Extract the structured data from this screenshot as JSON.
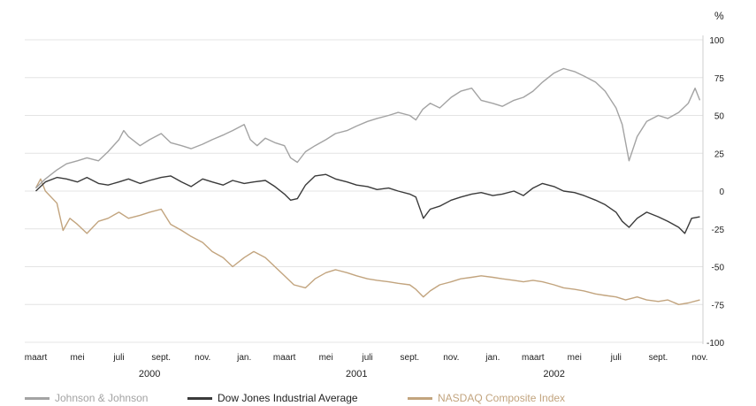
{
  "chart_data": {
    "type": "line",
    "unit_label": "%",
    "ylim": [
      -100,
      100
    ],
    "y_ticks": [
      "100",
      "75",
      "50",
      "25",
      "0",
      "-25",
      "-50",
      "-75",
      "-100"
    ],
    "y_tick_values": [
      100,
      75,
      50,
      25,
      0,
      -25,
      -50,
      -75,
      -100
    ],
    "month_labels": [
      "maart",
      "mei",
      "juli",
      "sept.",
      "nov.",
      "jan.",
      "maart",
      "mei",
      "juli",
      "sept.",
      "nov.",
      "jan.",
      "maart",
      "mei",
      "juli",
      "sept.",
      "nov."
    ],
    "month_dates": [
      "2000-03-01",
      "2000-05-01",
      "2000-07-01",
      "2000-09-01",
      "2000-11-01",
      "2001-01-01",
      "2001-03-01",
      "2001-05-01",
      "2001-07-01",
      "2001-09-01",
      "2001-11-01",
      "2002-01-01",
      "2002-03-01",
      "2002-05-01",
      "2002-07-01",
      "2002-09-01",
      "2002-11-01"
    ],
    "year_labels": [
      {
        "label": "2000",
        "date": "2000-08-15"
      },
      {
        "label": "2001",
        "date": "2001-06-15"
      },
      {
        "label": "2002",
        "date": "2002-04-01"
      }
    ],
    "x_range": [
      "2000-02-28",
      "2002-11-03"
    ],
    "grid": true,
    "legend_position": "bottom",
    "series": [
      {
        "name": "Johnson & Johnson",
        "color": "#a3a3a3",
        "x": [
          "2000-03-01",
          "2000-03-15",
          "2000-04-01",
          "2000-04-15",
          "2000-05-01",
          "2000-05-15",
          "2000-06-01",
          "2000-06-15",
          "2000-07-01",
          "2000-07-08",
          "2000-07-15",
          "2000-08-01",
          "2000-08-15",
          "2000-09-01",
          "2000-09-15",
          "2000-10-01",
          "2000-10-15",
          "2000-11-01",
          "2000-11-15",
          "2000-12-01",
          "2000-12-15",
          "2001-01-01",
          "2001-01-10",
          "2001-01-20",
          "2001-02-01",
          "2001-02-15",
          "2001-03-01",
          "2001-03-10",
          "2001-03-20",
          "2001-04-01",
          "2001-04-15",
          "2001-05-01",
          "2001-05-15",
          "2001-06-01",
          "2001-06-15",
          "2001-07-01",
          "2001-07-15",
          "2001-08-01",
          "2001-08-15",
          "2001-09-01",
          "2001-09-10",
          "2001-09-20",
          "2001-10-01",
          "2001-10-15",
          "2001-11-01",
          "2001-11-15",
          "2001-12-01",
          "2001-12-15",
          "2002-01-01",
          "2002-01-15",
          "2002-02-01",
          "2002-02-15",
          "2002-03-01",
          "2002-03-15",
          "2002-04-01",
          "2002-04-15",
          "2002-05-01",
          "2002-05-15",
          "2002-06-01",
          "2002-06-15",
          "2002-07-01",
          "2002-07-10",
          "2002-07-20",
          "2002-08-01",
          "2002-08-15",
          "2002-09-01",
          "2002-09-15",
          "2002-10-01",
          "2002-10-15",
          "2002-10-25",
          "2002-11-01"
        ],
        "values": [
          2,
          8,
          14,
          18,
          20,
          22,
          20,
          26,
          34,
          40,
          36,
          30,
          34,
          38,
          32,
          30,
          28,
          31,
          34,
          37,
          40,
          44,
          34,
          30,
          35,
          32,
          30,
          22,
          19,
          26,
          30,
          34,
          38,
          40,
          43,
          46,
          48,
          50,
          52,
          50,
          47,
          54,
          58,
          55,
          62,
          66,
          68,
          60,
          58,
          56,
          60,
          62,
          66,
          72,
          78,
          81,
          79,
          76,
          72,
          66,
          55,
          44,
          20,
          36,
          46,
          50,
          48,
          52,
          58,
          68,
          60
        ]
      },
      {
        "name": "Dow Jones Industrial Average",
        "color": "#3a3a3a",
        "x": [
          "2000-03-01",
          "2000-03-15",
          "2000-04-01",
          "2000-04-15",
          "2000-05-01",
          "2000-05-15",
          "2000-06-01",
          "2000-06-15",
          "2000-07-01",
          "2000-07-15",
          "2000-08-01",
          "2000-08-15",
          "2000-09-01",
          "2000-09-15",
          "2000-10-01",
          "2000-10-15",
          "2000-11-01",
          "2000-11-15",
          "2000-12-01",
          "2000-12-15",
          "2001-01-01",
          "2001-01-15",
          "2001-02-01",
          "2001-02-15",
          "2001-03-01",
          "2001-03-10",
          "2001-03-20",
          "2001-04-01",
          "2001-04-15",
          "2001-05-01",
          "2001-05-15",
          "2001-06-01",
          "2001-06-15",
          "2001-07-01",
          "2001-07-15",
          "2001-08-01",
          "2001-08-15",
          "2001-09-01",
          "2001-09-10",
          "2001-09-21",
          "2001-10-01",
          "2001-10-15",
          "2001-11-01",
          "2001-11-15",
          "2001-12-01",
          "2001-12-15",
          "2002-01-01",
          "2002-01-15",
          "2002-02-01",
          "2002-02-15",
          "2002-03-01",
          "2002-03-15",
          "2002-04-01",
          "2002-04-15",
          "2002-05-01",
          "2002-05-15",
          "2002-06-01",
          "2002-06-15",
          "2002-07-01",
          "2002-07-10",
          "2002-07-20",
          "2002-08-01",
          "2002-08-15",
          "2002-09-01",
          "2002-09-15",
          "2002-10-01",
          "2002-10-10",
          "2002-10-20",
          "2002-11-01"
        ],
        "values": [
          0,
          6,
          9,
          8,
          6,
          9,
          5,
          4,
          6,
          8,
          5,
          7,
          9,
          10,
          6,
          3,
          8,
          6,
          4,
          7,
          5,
          6,
          7,
          3,
          -2,
          -6,
          -5,
          4,
          10,
          11,
          8,
          6,
          4,
          3,
          1,
          2,
          0,
          -2,
          -4,
          -18,
          -12,
          -10,
          -6,
          -4,
          -2,
          -1,
          -3,
          -2,
          0,
          -3,
          2,
          5,
          3,
          0,
          -1,
          -3,
          -6,
          -9,
          -14,
          -20,
          -24,
          -18,
          -14,
          -17,
          -20,
          -24,
          -28,
          -18,
          -17
        ]
      },
      {
        "name": "NASDAQ Composite Index",
        "color": "#c2a47e",
        "x": [
          "2000-03-01",
          "2000-03-08",
          "2000-03-15",
          "2000-04-01",
          "2000-04-10",
          "2000-04-20",
          "2000-05-01",
          "2000-05-15",
          "2000-06-01",
          "2000-06-15",
          "2000-07-01",
          "2000-07-15",
          "2000-08-01",
          "2000-08-15",
          "2000-09-01",
          "2000-09-15",
          "2000-10-01",
          "2000-10-15",
          "2000-11-01",
          "2000-11-15",
          "2000-12-01",
          "2000-12-15",
          "2001-01-01",
          "2001-01-15",
          "2001-02-01",
          "2001-02-15",
          "2001-03-01",
          "2001-03-15",
          "2001-04-01",
          "2001-04-15",
          "2001-05-01",
          "2001-05-15",
          "2001-06-01",
          "2001-06-15",
          "2001-07-01",
          "2001-07-15",
          "2001-08-01",
          "2001-08-15",
          "2001-09-01",
          "2001-09-10",
          "2001-09-21",
          "2001-10-01",
          "2001-10-15",
          "2001-11-01",
          "2001-11-15",
          "2001-12-01",
          "2001-12-15",
          "2002-01-01",
          "2002-01-15",
          "2002-02-01",
          "2002-02-15",
          "2002-03-01",
          "2002-03-15",
          "2002-04-01",
          "2002-04-15",
          "2002-05-01",
          "2002-05-15",
          "2002-06-01",
          "2002-06-15",
          "2002-07-01",
          "2002-07-15",
          "2002-08-01",
          "2002-08-15",
          "2002-09-01",
          "2002-09-15",
          "2002-10-01",
          "2002-10-15",
          "2002-11-01"
        ],
        "values": [
          2,
          8,
          0,
          -8,
          -26,
          -18,
          -22,
          -28,
          -20,
          -18,
          -14,
          -18,
          -16,
          -14,
          -12,
          -22,
          -26,
          -30,
          -34,
          -40,
          -44,
          -50,
          -44,
          -40,
          -44,
          -50,
          -56,
          -62,
          -64,
          -58,
          -54,
          -52,
          -54,
          -56,
          -58,
          -59,
          -60,
          -61,
          -62,
          -65,
          -70,
          -66,
          -62,
          -60,
          -58,
          -57,
          -56,
          -57,
          -58,
          -59,
          -60,
          -59,
          -60,
          -62,
          -64,
          -65,
          -66,
          -68,
          -69,
          -70,
          -72,
          -70,
          -72,
          -73,
          -72,
          -75,
          -74,
          -72
        ]
      }
    ]
  }
}
